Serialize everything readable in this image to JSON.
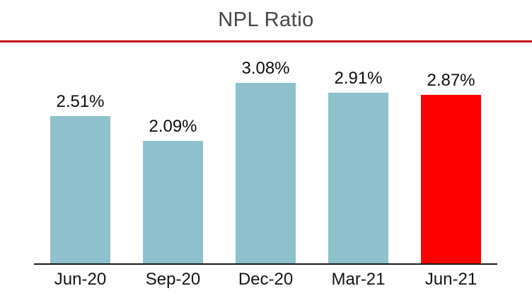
{
  "title": "NPL Ratio",
  "chart_data": {
    "type": "bar",
    "title": "NPL Ratio",
    "categories": [
      "Jun-20",
      "Sep-20",
      "Dec-20",
      "Mar-21",
      "Jun-21"
    ],
    "values": [
      2.51,
      2.09,
      3.08,
      2.91,
      2.87
    ],
    "value_labels": [
      "2.51%",
      "2.09%",
      "3.08%",
      "2.91%",
      "2.87%"
    ],
    "xlabel": "",
    "ylabel": "",
    "ylim": [
      0,
      3.52
    ],
    "grid": false,
    "legend": "none",
    "y_axis_visible": false,
    "bar_colors": [
      "#8DC1CE",
      "#8DC1CE",
      "#8DC1CE",
      "#8DC1CE",
      "#FF0000"
    ],
    "colors": {
      "bar_default": "#8DC1CE",
      "bar_highlight": "#FF0000",
      "title_text": "#454545",
      "title_divider": "#C31414",
      "axis_line": "#1A1A1A",
      "label_text": "#0D0D0D"
    }
  }
}
